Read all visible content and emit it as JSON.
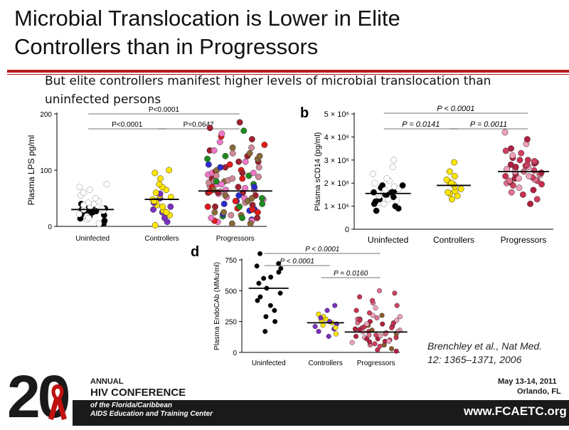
{
  "slide": {
    "title_line1": "Microbial Translocation is Lower in Elite",
    "title_line2": "Controllers than in Progressors",
    "subtitle": "But elite controllers manifest higher levels of microbial translocation than uninfected persons",
    "citation_line1": "Brenchley et al., Nat Med.",
    "citation_line2": "12: 1365–1371, 2006",
    "accent_color": "#b31b1b"
  },
  "footer": {
    "logo_number": "20",
    "logo_suffix": "th",
    "annual": "ANNUAL",
    "conference": "HIV CONFERENCE",
    "of_line1": "of the Florida/Caribbean",
    "of_line2": "AIDS Education and Training Center",
    "date": "May 13-14, 2011",
    "location": "Orlando, FL",
    "website": "www.FCAETC.org"
  },
  "chart_data": [
    {
      "type": "scatter",
      "panel_label": "",
      "ylabel": "Plasma LPS  pg/ml",
      "ylim": [
        0,
        200
      ],
      "yticks": [
        {
          "v": 0,
          "t": "0"
        },
        {
          "v": 100,
          "t": "100"
        },
        {
          "v": 200,
          "t": "200"
        }
      ],
      "categories": [
        "Uninfected",
        "Controllers",
        "Progressors"
      ],
      "medians": [
        30,
        48,
        63
      ],
      "comparisons": [
        {
          "from": 0,
          "to": 2,
          "label": "P<0.0001",
          "level": 0
        },
        {
          "from": 0,
          "to": 1,
          "label": "P<0.0001",
          "level": 1
        },
        {
          "from": 1,
          "to": 2,
          "label": "P=0.0647",
          "level": 1
        }
      ],
      "series": [
        {
          "group": 0,
          "values": [
            5,
            10,
            14,
            18,
            20,
            22,
            24,
            25,
            27,
            28,
            30,
            32,
            34,
            35,
            36,
            38,
            40,
            5,
            12,
            18,
            22,
            28,
            30,
            32,
            35,
            38,
            40,
            42,
            45,
            50,
            55,
            60,
            65,
            70,
            75,
            15
          ],
          "colors": [
            "#000000",
            "#000000",
            "#000000",
            "#000000",
            "#000000",
            "#000000",
            "#000000",
            "#000000",
            "#000000",
            "#000000",
            "#000000",
            "#000000",
            "#000000",
            "#000000",
            "#000000",
            "#000000",
            "#000000",
            "#ffffff",
            "#ffffff",
            "#ffffff",
            "#ffffff",
            "#ffffff",
            "#ffffff",
            "#ffffff",
            "#ffffff",
            "#ffffff",
            "#ffffff",
            "#ffffff",
            "#ffffff",
            "#ffffff",
            "#ffffff",
            "#ffffff",
            "#ffffff",
            "#ffffff",
            "#ffffff",
            "#ffffff"
          ]
        },
        {
          "group": 1,
          "values": [
            2,
            8,
            15,
            20,
            25,
            28,
            30,
            35,
            38,
            42,
            45,
            48,
            50,
            52,
            55,
            58,
            60,
            65,
            70,
            75,
            85,
            95,
            100,
            35,
            25,
            45
          ],
          "colors": [
            "#ffe600",
            "#7b2fbf",
            "#7b2fbf",
            "#ffe600",
            "#7b2fbf",
            "#ffe600",
            "#7b2fbf",
            "#ffe600",
            "#ffe600",
            "#7b2fbf",
            "#ffe600",
            "#ffe600",
            "#7b2fbf",
            "#ffe600",
            "#ffe600",
            "#7b2fbf",
            "#ffe600",
            "#ffe600",
            "#ffe600",
            "#ffe600",
            "#ffe600",
            "#ffe600",
            "#ffe600",
            "#7b2fbf",
            "#ffe600",
            "#ffe600"
          ]
        },
        {
          "group": 2,
          "values": [
            5,
            8,
            10,
            12,
            15,
            18,
            20,
            22,
            25,
            28,
            30,
            32,
            35,
            38,
            40,
            42,
            45,
            48,
            50,
            52,
            55,
            58,
            60,
            62,
            65,
            68,
            70,
            72,
            75,
            78,
            80,
            82,
            85,
            88,
            90,
            92,
            95,
            98,
            100,
            105,
            110,
            115,
            120,
            125,
            130,
            135,
            140,
            150,
            160,
            170,
            185,
            10,
            20,
            30,
            40,
            50,
            60,
            70,
            80,
            90,
            100,
            110,
            120,
            130,
            140,
            15,
            25,
            35,
            45,
            55,
            65,
            75,
            85,
            95,
            105,
            115,
            125,
            135,
            145,
            155,
            165,
            175,
            5,
            15,
            25,
            35,
            45,
            55,
            65,
            75,
            85,
            95,
            105,
            115,
            125,
            50,
            60,
            70,
            80,
            62
          ],
          "palette": [
            "#e01a1a",
            "#1f8a1f",
            "#f078c8",
            "#2b2bd0",
            "#8b6a3a",
            "#d08a9a",
            "#a02030"
          ]
        }
      ]
    },
    {
      "type": "scatter",
      "panel_label": "b",
      "ylabel": "Plasma sCD14 (pg/ml)",
      "ylim": [
        0,
        5000000
      ],
      "yticks": [
        {
          "v": 0,
          "t": "0"
        },
        {
          "v": 1000000,
          "t": "1 × 10⁶"
        },
        {
          "v": 2000000,
          "t": "2 × 10⁶"
        },
        {
          "v": 3000000,
          "t": "3 × 10⁶"
        },
        {
          "v": 4000000,
          "t": "4 × 10⁶"
        },
        {
          "v": 5000000,
          "t": "5 × 10⁶"
        }
      ],
      "categories": [
        "Uninfected",
        "Controllers",
        "Progressors"
      ],
      "medians": [
        1550000,
        1900000,
        2500000
      ],
      "comparisons": [
        {
          "from": 0,
          "to": 2,
          "label": "P < 0.0001",
          "level": 0
        },
        {
          "from": 0,
          "to": 1,
          "label": "P = 0.0141",
          "level": 1
        },
        {
          "from": 1,
          "to": 2,
          "label": "P = 0.0011",
          "level": 1
        }
      ],
      "series": [
        {
          "group": 0,
          "values": [
            800000,
            900000,
            1000000,
            1100000,
            1150000,
            1200000,
            1250000,
            1300000,
            1350000,
            1400000,
            1450000,
            1500000,
            1550000,
            1600000,
            1650000,
            1700000,
            1750000,
            1800000,
            1850000,
            1900000,
            2000000,
            2100000,
            2200000,
            2400000,
            2700000,
            3000000,
            1300000,
            1500000,
            1700000,
            1900000,
            1100000,
            1600000
          ],
          "colors": [
            "#000000",
            "#000000",
            "#000000",
            "#000000",
            "#ffffff",
            "#000000",
            "#ffffff",
            "#000000",
            "#ffffff",
            "#000000",
            "#ffffff",
            "#000000",
            "#ffffff",
            "#000000",
            "#ffffff",
            "#000000",
            "#ffffff",
            "#000000",
            "#ffffff",
            "#000000",
            "#ffffff",
            "#ffffff",
            "#ffffff",
            "#ffffff",
            "#ffffff",
            "#ffffff",
            "#ffffff",
            "#000000",
            "#ffffff",
            "#000000",
            "#ffffff",
            "#000000"
          ]
        },
        {
          "group": 1,
          "values": [
            1300000,
            1450000,
            1550000,
            1650000,
            1750000,
            1850000,
            1950000,
            2050000,
            2150000,
            2300000,
            2500000,
            2900000,
            1600000,
            2000000
          ],
          "colors": [
            "#ffe600"
          ]
        },
        {
          "group": 2,
          "values": [
            1100000,
            1300000,
            1500000,
            1600000,
            1700000,
            1800000,
            1900000,
            1950000,
            2000000,
            2050000,
            2100000,
            2150000,
            2200000,
            2250000,
            2300000,
            2350000,
            2400000,
            2450000,
            2500000,
            2550000,
            2600000,
            2650000,
            2700000,
            2750000,
            2800000,
            2850000,
            2900000,
            2950000,
            3000000,
            3100000,
            3200000,
            3300000,
            3400000,
            3500000,
            3700000,
            3900000,
            4200000,
            2200000,
            2400000,
            2600000,
            2800000,
            3000000,
            2300000,
            2500000,
            2700000,
            2100000
          ],
          "palette": [
            "#d04060",
            "#e07090",
            "#b02040",
            "#f0a0b8",
            "#c83050"
          ]
        }
      ]
    },
    {
      "type": "scatter",
      "panel_label": "d",
      "ylabel": "Plasma EndoCAb (MMu/ml)",
      "ylim": [
        0,
        750
      ],
      "yticks": [
        {
          "v": 0,
          "t": "0"
        },
        {
          "v": 250,
          "t": "250"
        },
        {
          "v": 500,
          "t": "500"
        },
        {
          "v": 750,
          "t": "750"
        }
      ],
      "categories": [
        "Uninfected",
        "Controllers",
        "Progressors"
      ],
      "medians": [
        520,
        240,
        165
      ],
      "comparisons": [
        {
          "from": 0,
          "to": 2,
          "label": "P < 0.0001",
          "level": 0
        },
        {
          "from": 0,
          "to": 1,
          "label": "P < 0.0001",
          "level": 1
        },
        {
          "from": 1,
          "to": 2,
          "label": "P = 0.0160",
          "level": 2
        }
      ],
      "series": [
        {
          "group": 0,
          "values": [
            170,
            250,
            290,
            340,
            380,
            420,
            450,
            480,
            520,
            560,
            600,
            650,
            680,
            700,
            720,
            800,
            610
          ],
          "colors": [
            "#000000"
          ]
        },
        {
          "group": 1,
          "values": [
            130,
            150,
            170,
            190,
            210,
            220,
            230,
            240,
            250,
            260,
            270,
            290,
            310,
            340,
            380,
            200,
            280
          ],
          "palette": [
            "#ffe600",
            "#7b2fbf"
          ]
        },
        {
          "group": 2,
          "values": [
            10,
            20,
            30,
            50,
            60,
            70,
            80,
            90,
            100,
            110,
            120,
            130,
            140,
            150,
            160,
            165,
            170,
            180,
            190,
            200,
            210,
            220,
            230,
            240,
            250,
            260,
            270,
            280,
            300,
            320,
            340,
            360,
            380,
            400,
            420,
            450,
            480,
            500,
            60,
            90,
            120,
            150,
            180,
            210,
            240,
            270,
            300,
            110,
            140,
            170,
            200,
            230,
            260,
            290,
            85,
            135,
            185,
            235
          ],
          "palette": [
            "#d04060",
            "#e07090",
            "#b02040",
            "#f0a0b8",
            "#c83050",
            "#8b5a2b"
          ]
        }
      ]
    }
  ]
}
